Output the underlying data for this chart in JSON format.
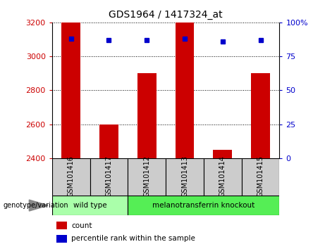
{
  "title": "GDS1964 / 1417324_at",
  "samples": [
    "GSM101416",
    "GSM101417",
    "GSM101412",
    "GSM101413",
    "GSM101414",
    "GSM101415"
  ],
  "count_values": [
    3200,
    2600,
    2900,
    3200,
    2450,
    2900
  ],
  "percentile_values": [
    88,
    87,
    87,
    88,
    86,
    87
  ],
  "ymin": 2400,
  "ymax": 3200,
  "yticks": [
    2400,
    2600,
    2800,
    3000,
    3200
  ],
  "right_yticks": [
    0,
    25,
    50,
    75,
    100
  ],
  "groups": [
    {
      "label": "wild type",
      "indices": [
        0,
        1
      ],
      "color": "#aaffaa"
    },
    {
      "label": "melanotransferrin knockout",
      "indices": [
        2,
        3,
        4,
        5
      ],
      "color": "#55ee55"
    }
  ],
  "bar_color": "#cc0000",
  "dot_color": "#0000cc",
  "bar_width": 0.5,
  "tick_label_color_left": "#cc0000",
  "tick_label_color_right": "#0000cc",
  "legend_items": [
    {
      "label": "count",
      "color": "#cc0000"
    },
    {
      "label": "percentile rank within the sample",
      "color": "#0000cc"
    }
  ],
  "sample_box_color": "#cccccc",
  "genotype_label": "genotype/variation"
}
